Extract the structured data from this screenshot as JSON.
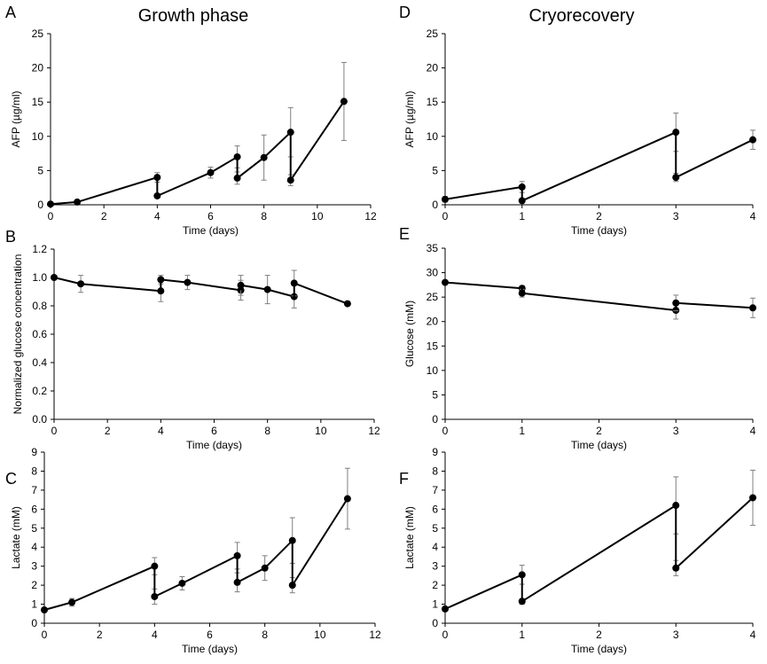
{
  "column_titles": {
    "left": "Growth phase",
    "right": "Cryorecovery"
  },
  "chart_data": [
    {
      "panel": "A",
      "type": "line",
      "title": "",
      "xlabel": "Time (days)",
      "ylabel": "AFP (µg/ml)",
      "xlim": [
        0,
        12
      ],
      "ylim": [
        0,
        25
      ],
      "xticks": [
        0,
        2,
        4,
        6,
        8,
        10,
        12
      ],
      "yticks": [
        0,
        5,
        10,
        15,
        20,
        25
      ],
      "ytick_labels": [
        "0",
        "5",
        "10",
        "15",
        "20",
        "25"
      ],
      "grid": false,
      "segments": [
        [
          {
            "x": 0,
            "y": 0.1,
            "err": 0.1
          },
          {
            "x": 1,
            "y": 0.4,
            "err": 0.1
          },
          {
            "x": 4,
            "y": 4.0,
            "err": 0.7
          }
        ],
        [
          {
            "x": 4,
            "y": 1.3,
            "err": 0.3
          },
          {
            "x": 6,
            "y": 4.7,
            "err": 0.8
          },
          {
            "x": 7,
            "y": 7.0,
            "err": 1.6
          }
        ],
        [
          {
            "x": 7,
            "y": 3.9,
            "err": 0.9
          },
          {
            "x": 8,
            "y": 6.9,
            "err": 3.3
          },
          {
            "x": 9,
            "y": 10.6,
            "err": 3.6
          }
        ],
        [
          {
            "x": 9,
            "y": 3.6,
            "err": 0.8
          },
          {
            "x": 11,
            "y": 15.1,
            "err": 5.7
          }
        ]
      ]
    },
    {
      "panel": "B",
      "type": "line",
      "title": "",
      "xlabel": "Time (days)",
      "ylabel": "Normalized glucose concentration",
      "xlim": [
        0,
        12
      ],
      "ylim": [
        0,
        1.2
      ],
      "xticks": [
        0,
        2,
        4,
        6,
        8,
        10,
        12
      ],
      "yticks": [
        0,
        0.2,
        0.4,
        0.6,
        0.8,
        1.0,
        1.2
      ],
      "ytick_labels": [
        "0.0",
        "0.2",
        "0.4",
        "0.6",
        "0.8",
        "1.0",
        "1.2"
      ],
      "grid": false,
      "segments": [
        [
          {
            "x": 0,
            "y": 1.0,
            "err": 0
          },
          {
            "x": 1,
            "y": 0.955,
            "err": 0.06
          },
          {
            "x": 4,
            "y": 0.905,
            "err": 0.075
          }
        ],
        [
          {
            "x": 4,
            "y": 0.985,
            "err": 0.03
          },
          {
            "x": 5,
            "y": 0.965,
            "err": 0.05
          },
          {
            "x": 7,
            "y": 0.91,
            "err": 0.07
          }
        ],
        [
          {
            "x": 7,
            "y": 0.945,
            "err": 0.07
          },
          {
            "x": 8,
            "y": 0.915,
            "err": 0.1
          },
          {
            "x": 9,
            "y": 0.865,
            "err": 0.08
          }
        ],
        [
          {
            "x": 9,
            "y": 0.96,
            "err": 0.09
          },
          {
            "x": 11,
            "y": 0.815,
            "err": 0
          }
        ]
      ]
    },
    {
      "panel": "C",
      "type": "line",
      "title": "",
      "xlabel": "Time (days)",
      "ylabel": "Lactate (mM)",
      "xlim": [
        0,
        12
      ],
      "ylim": [
        0,
        9
      ],
      "xticks": [
        0,
        2,
        4,
        6,
        8,
        10,
        12
      ],
      "yticks": [
        0,
        1,
        2,
        3,
        4,
        5,
        6,
        7,
        8,
        9
      ],
      "ytick_labels": [
        "0",
        "1",
        "2",
        "3",
        "4",
        "5",
        "6",
        "7",
        "8",
        "9"
      ],
      "grid": false,
      "segments": [
        [
          {
            "x": 0,
            "y": 0.7,
            "err": 0.05
          },
          {
            "x": 1,
            "y": 1.1,
            "err": 0.2
          },
          {
            "x": 4,
            "y": 3.0,
            "err": 0.45
          }
        ],
        [
          {
            "x": 4,
            "y": 1.4,
            "err": 0.4
          },
          {
            "x": 5,
            "y": 2.1,
            "err": 0.35
          },
          {
            "x": 7,
            "y": 3.55,
            "err": 0.7
          }
        ],
        [
          {
            "x": 7,
            "y": 2.15,
            "err": 0.5
          },
          {
            "x": 8,
            "y": 2.9,
            "err": 0.65
          },
          {
            "x": 9,
            "y": 4.35,
            "err": 1.2
          }
        ],
        [
          {
            "x": 9,
            "y": 2.0,
            "err": 0.4
          },
          {
            "x": 11,
            "y": 6.55,
            "err": 1.6
          }
        ]
      ]
    },
    {
      "panel": "D",
      "type": "line",
      "title": "",
      "xlabel": "Time (days)",
      "ylabel": "AFP (µg/ml)",
      "xlim": [
        0,
        4
      ],
      "ylim": [
        0,
        25
      ],
      "xticks": [
        0,
        1,
        2,
        3,
        4
      ],
      "yticks": [
        0,
        5,
        10,
        15,
        20,
        25
      ],
      "ytick_labels": [
        "0",
        "5",
        "10",
        "15",
        "20",
        "25"
      ],
      "grid": false,
      "segments": [
        [
          {
            "x": 0,
            "y": 0.8,
            "err": 0.4
          },
          {
            "x": 1,
            "y": 2.6,
            "err": 0.8
          }
        ],
        [
          {
            "x": 1,
            "y": 0.6,
            "err": 0.2
          },
          {
            "x": 3,
            "y": 10.6,
            "err": 2.8
          }
        ],
        [
          {
            "x": 3,
            "y": 4.0,
            "err": 0.6
          },
          {
            "x": 4,
            "y": 9.5,
            "err": 1.4
          }
        ]
      ]
    },
    {
      "panel": "E",
      "type": "line",
      "title": "",
      "xlabel": "Time (days)",
      "ylabel": "Glucose (mM)",
      "xlim": [
        0,
        4
      ],
      "ylim": [
        0,
        35
      ],
      "xticks": [
        0,
        1,
        2,
        3,
        4
      ],
      "yticks": [
        0,
        5,
        10,
        15,
        20,
        25,
        30,
        35
      ],
      "ytick_labels": [
        "0",
        "5",
        "10",
        "15",
        "20",
        "25",
        "30",
        "35"
      ],
      "grid": false,
      "segments": [
        [
          {
            "x": 0,
            "y": 28.0,
            "err": 0.4
          },
          {
            "x": 1,
            "y": 26.8,
            "err": 0.5
          }
        ],
        [
          {
            "x": 1,
            "y": 25.8,
            "err": 0.8
          },
          {
            "x": 3,
            "y": 22.3,
            "err": 1.8
          }
        ],
        [
          {
            "x": 3,
            "y": 23.8,
            "err": 1.6
          },
          {
            "x": 4,
            "y": 22.8,
            "err": 2.0
          }
        ]
      ]
    },
    {
      "panel": "F",
      "type": "line",
      "title": "",
      "xlabel": "Time (days)",
      "ylabel": "Lactate (mM)",
      "xlim": [
        0,
        4
      ],
      "ylim": [
        0,
        9
      ],
      "xticks": [
        0,
        1,
        2,
        3,
        4
      ],
      "yticks": [
        0,
        1,
        2,
        3,
        4,
        5,
        6,
        7,
        8,
        9
      ],
      "ytick_labels": [
        "0",
        "1",
        "2",
        "3",
        "4",
        "5",
        "6",
        "7",
        "8",
        "9"
      ],
      "grid": false,
      "segments": [
        [
          {
            "x": 0,
            "y": 0.75,
            "err": 0.05
          },
          {
            "x": 1,
            "y": 2.55,
            "err": 0.5
          }
        ],
        [
          {
            "x": 1,
            "y": 1.15,
            "err": 0.15
          },
          {
            "x": 3,
            "y": 6.2,
            "err": 1.5
          }
        ],
        [
          {
            "x": 3,
            "y": 2.9,
            "err": 0.4
          },
          {
            "x": 4,
            "y": 6.6,
            "err": 1.45
          }
        ]
      ]
    }
  ]
}
